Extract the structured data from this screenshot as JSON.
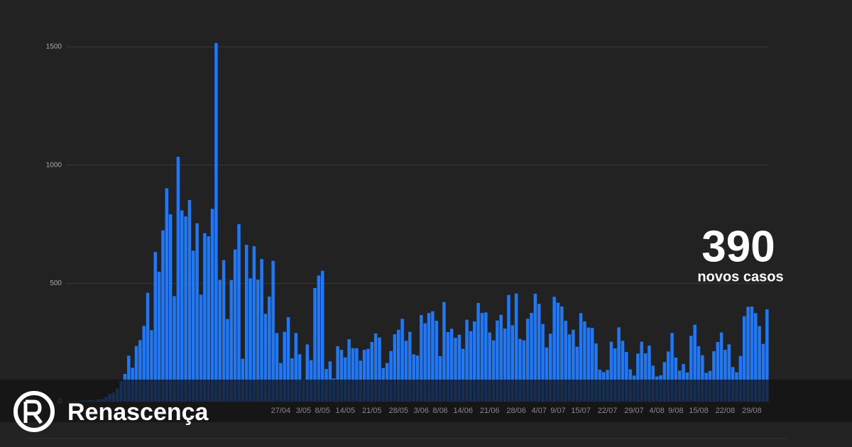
{
  "chart_data": {
    "type": "bar",
    "values": [
      2,
      0,
      2,
      2,
      4,
      5,
      8,
      4,
      9,
      10,
      19,
      32,
      39,
      55,
      86,
      117,
      194,
      143,
      235,
      260,
      320,
      460,
      302,
      633,
      549,
      724,
      902,
      792,
      446,
      1035,
      808,
      783,
      852,
      638,
      754,
      452,
      712,
      699,
      815,
      1516,
      515,
      598,
      349,
      514,
      643,
      750,
      181,
      663,
      521,
      657,
      516,
      603,
      371,
      444,
      595,
      290,
      163,
      295,
      357,
      183,
      290,
      200,
      92,
      242,
      175,
      480,
      533,
      553,
      138,
      170,
      98,
      234,
      219,
      187,
      264,
      226,
      226,
      173,
      219,
      223,
      252,
      288,
      271,
      142,
      163,
      214,
      285,
      304,
      350,
      257,
      295,
      200,
      195,
      366,
      331,
      375,
      382,
      342,
      192,
      421,
      294,
      308,
      270,
      283,
      223,
      346,
      298,
      339,
      417,
      375,
      377,
      292,
      259,
      343,
      367,
      309,
      451,
      323,
      457,
      265,
      259,
      350,
      375,
      456,
      413,
      328,
      229,
      287,
      443,
      418,
      402,
      342,
      284,
      304,
      232,
      374,
      339,
      313,
      312,
      246,
      135,
      125,
      134,
      253,
      225,
      314,
      257,
      210,
      136,
      110,
      203,
      253,
      204,
      237,
      152,
      106,
      111,
      167,
      212,
      290,
      186,
      131,
      159,
      123,
      278,
      325,
      234,
      196,
      122,
      130,
      213,
      252,
      292,
      219,
      242,
      146,
      124,
      193,
      361,
      401,
      402,
      374,
      319,
      244,
      390
    ],
    "categories": [
      null,
      null,
      null,
      null,
      null,
      null,
      null,
      null,
      null,
      null,
      null,
      null,
      null,
      null,
      null,
      null,
      null,
      null,
      null,
      null,
      null,
      null,
      null,
      null,
      null,
      null,
      null,
      null,
      null,
      null,
      null,
      null,
      null,
      null,
      null,
      null,
      null,
      null,
      null,
      null,
      null,
      null,
      null,
      null,
      null,
      null,
      null,
      null,
      null,
      null,
      null,
      null,
      null,
      null,
      null,
      null,
      "27/04",
      null,
      null,
      null,
      null,
      null,
      "3/05",
      null,
      null,
      null,
      null,
      "8/05",
      null,
      null,
      null,
      null,
      null,
      "14/05",
      null,
      null,
      null,
      null,
      null,
      null,
      "21/05",
      null,
      null,
      null,
      null,
      null,
      null,
      "28/05",
      null,
      null,
      null,
      null,
      null,
      "3/06",
      null,
      null,
      null,
      null,
      "8/06",
      null,
      null,
      null,
      null,
      null,
      "14/06",
      null,
      null,
      null,
      null,
      null,
      null,
      "21/06",
      null,
      null,
      null,
      null,
      null,
      null,
      "28/06",
      null,
      null,
      null,
      null,
      null,
      "4/07",
      null,
      null,
      null,
      null,
      "9/07",
      null,
      null,
      null,
      null,
      null,
      "15/07",
      null,
      null,
      null,
      null,
      null,
      null,
      "22/07",
      null,
      null,
      null,
      null,
      null,
      null,
      "29/07",
      null,
      null,
      null,
      null,
      null,
      "4/08",
      null,
      null,
      null,
      null,
      "9/08",
      null,
      null,
      null,
      null,
      null,
      "15/08",
      null,
      null,
      null,
      null,
      null,
      null,
      "22/08",
      null,
      null,
      null,
      null,
      null,
      null,
      "29/08",
      null,
      null,
      null,
      null
    ],
    "color": "#1f78f5",
    "ylim": [
      0,
      1500
    ],
    "yticks": [
      0,
      500,
      1000,
      1500
    ],
    "grid": true,
    "annotation": {
      "value": 390,
      "text": "novos casos"
    },
    "brand": "Renascença"
  }
}
